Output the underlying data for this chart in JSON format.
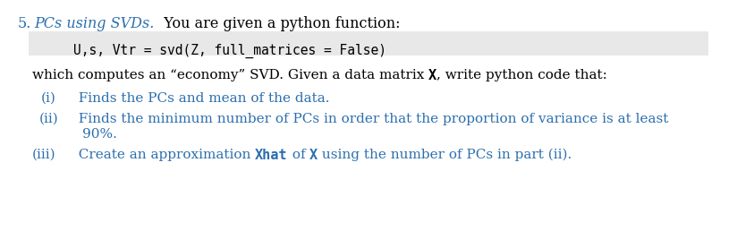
{
  "bg_color": "#ffffff",
  "code_bg_color": "#e8e8e8",
  "text_color_blue": "#2c6fad",
  "text_color_black": "#000000",
  "font_size_heading": 11.5,
  "font_size_code": 10.5,
  "font_size_body": 11,
  "font_size_items": 11,
  "heading_num": "5.",
  "heading_italic": "PCs using SVDs.",
  "heading_rest": "  You are given a python function:",
  "code_line": "    U,s, Vtr = svd(Z, full_matrices = False)",
  "intro_normal1": "which computes an “economy” SVD. Given a data matrix ",
  "intro_bold": "X",
  "intro_normal2": ", write python code that:",
  "item_i_label": "(i)",
  "item_i_text": "  Finds the PCs and mean of the data.",
  "item_ii_label": "(ii)",
  "item_ii_text1": "  Finds the minimum number of PCs in order that the proportion of variance is at least",
  "item_ii_text2": "90%.",
  "item_iii_label": "(iii)",
  "item_iii_text1": "  Create an approximation ",
  "item_iii_xhat": "Xhat",
  "item_iii_text2": " of ",
  "item_iii_x": "X",
  "item_iii_text3": " using the number of PCs in part (ii)."
}
